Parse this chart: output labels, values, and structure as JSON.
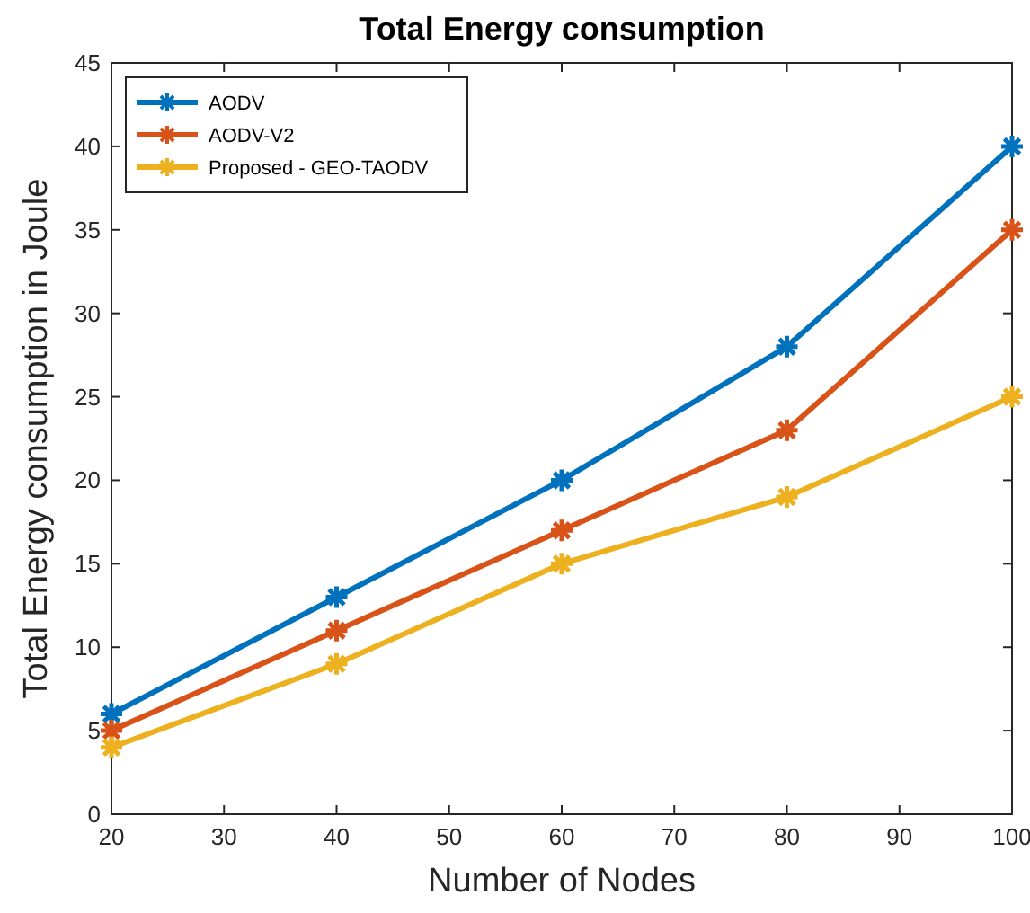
{
  "chart_data": {
    "type": "line",
    "title": "Total Energy consumption",
    "xlabel": "Number of Nodes",
    "ylabel": "Total Energy consumption in Joule",
    "x": [
      20,
      40,
      60,
      80,
      100
    ],
    "series": [
      {
        "name": "AODV",
        "color": "#0072bd",
        "values": [
          6,
          13,
          20,
          28,
          40
        ]
      },
      {
        "name": "AODV-V2",
        "color": "#d95319",
        "values": [
          5,
          11,
          17,
          23,
          35
        ]
      },
      {
        "name": "Proposed - GEO-TAODV",
        "color": "#edb120",
        "values": [
          4,
          9,
          15,
          19,
          25
        ]
      }
    ],
    "xlim": [
      20,
      100
    ],
    "xticks": [
      20,
      30,
      40,
      50,
      60,
      70,
      80,
      90,
      100
    ],
    "ylim": [
      0,
      45
    ],
    "yticks": [
      0,
      5,
      10,
      15,
      20,
      25,
      30,
      35,
      40,
      45
    ],
    "grid": false,
    "legend": "top left",
    "marker": "cross",
    "line_style": "solid"
  }
}
